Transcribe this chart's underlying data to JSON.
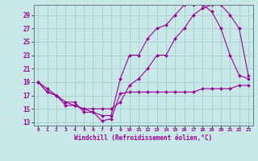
{
  "xlabel": "Windchill (Refroidissement éolien,°C)",
  "ylabel": "",
  "background_color": "#c8e8e8",
  "line_color": "#990099",
  "grid_color": "#aacccc",
  "xlim": [
    -0.5,
    23.5
  ],
  "ylim": [
    12.5,
    30.5
  ],
  "yticks": [
    13,
    15,
    17,
    19,
    21,
    23,
    25,
    27,
    29
  ],
  "xticks": [
    0,
    1,
    2,
    3,
    4,
    5,
    6,
    7,
    8,
    9,
    10,
    11,
    12,
    13,
    14,
    15,
    16,
    17,
    18,
    19,
    20,
    21,
    22,
    23
  ],
  "series": [
    {
      "x": [
        0,
        1,
        2,
        3,
        4,
        5,
        6,
        7,
        8,
        9,
        10,
        11,
        12,
        13,
        14,
        15,
        16,
        17,
        18,
        19,
        20,
        21,
        22,
        23
      ],
      "y": [
        19,
        18,
        17,
        16,
        15.5,
        15,
        15,
        15,
        15,
        16,
        18.5,
        19.5,
        21,
        23,
        23,
        25.5,
        27,
        29,
        30,
        30.5,
        30.5,
        29,
        27,
        20
      ]
    },
    {
      "x": [
        0,
        1,
        2,
        3,
        4,
        5,
        6,
        7,
        8,
        9,
        10,
        11,
        12,
        13,
        14,
        15,
        16,
        17,
        18,
        19,
        20,
        21,
        22,
        23
      ],
      "y": [
        19,
        17.5,
        17,
        15.5,
        15.5,
        15,
        14.5,
        14,
        14,
        19.5,
        23,
        23,
        25.5,
        27,
        27.5,
        29,
        30.5,
        30.5,
        30.5,
        29.5,
        27,
        23,
        20,
        19.5
      ]
    },
    {
      "x": [
        0,
        1,
        2,
        3,
        4,
        5,
        6,
        7,
        8,
        9,
        10,
        11,
        12,
        13,
        14,
        15,
        16,
        17,
        18,
        19,
        20,
        21,
        22,
        23
      ],
      "y": [
        19,
        17.5,
        17,
        16,
        16,
        14.5,
        14.5,
        13.2,
        13.5,
        17.3,
        17.5,
        17.5,
        17.5,
        17.5,
        17.5,
        17.5,
        17.5,
        17.5,
        18,
        18,
        18,
        18,
        18.5,
        18.5
      ]
    }
  ]
}
